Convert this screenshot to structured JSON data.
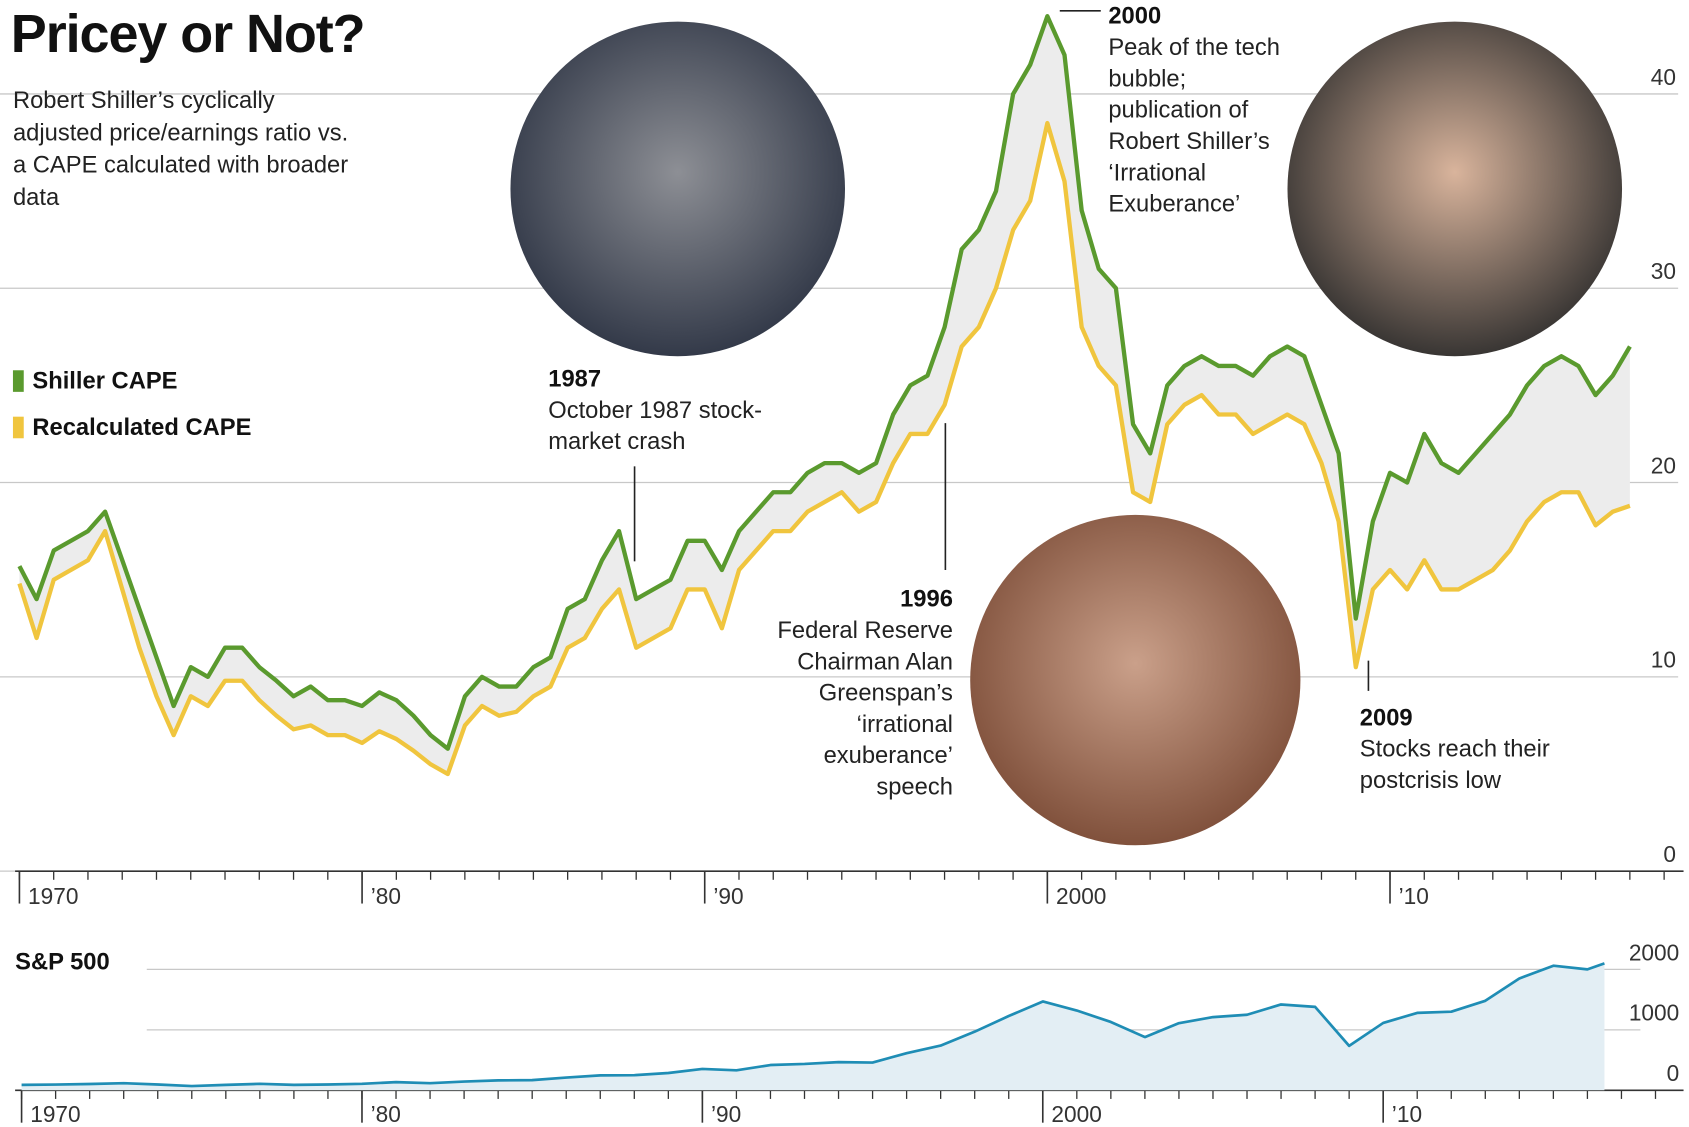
{
  "chart_data": [
    {
      "type": "line",
      "title": "Pricey or Not?",
      "subtitle": "Robert Shiller’s cyclically adjusted price/earnings ratio vs. a CAPE calculated with broader data",
      "x": [
        1970,
        1970.5,
        1971,
        1971.5,
        1972,
        1972.5,
        1973,
        1973.5,
        1974,
        1974.5,
        1975,
        1975.5,
        1976,
        1976.5,
        1977,
        1977.5,
        1978,
        1978.5,
        1979,
        1979.5,
        1980,
        1980.5,
        1981,
        1981.5,
        1982,
        1982.5,
        1983,
        1983.5,
        1984,
        1984.5,
        1985,
        1985.5,
        1986,
        1986.5,
        1987,
        1987.5,
        1988,
        1988.5,
        1989,
        1989.5,
        1990,
        1990.5,
        1991,
        1991.5,
        1992,
        1992.5,
        1993,
        1993.5,
        1994,
        1994.5,
        1995,
        1995.5,
        1996,
        1996.5,
        1997,
        1997.5,
        1998,
        1998.5,
        1999,
        1999.5,
        2000,
        2000.5,
        2001,
        2001.5,
        2002,
        2002.5,
        2003,
        2003.5,
        2004,
        2004.5,
        2005,
        2005.5,
        2006,
        2006.5,
        2007,
        2007.5,
        2008,
        2008.5,
        2009,
        2009.5,
        2010,
        2010.5,
        2011,
        2011.5,
        2012,
        2012.5,
        2013,
        2013.5,
        2014,
        2014.5,
        2015,
        2015.5,
        2016,
        2016.5,
        2017
      ],
      "series": [
        {
          "name": "Shiller CAPE",
          "color": "#5a9a2e",
          "values": [
            15.7,
            14.0,
            16.5,
            17.0,
            17.5,
            18.5,
            16.0,
            13.5,
            11.0,
            8.5,
            10.5,
            10.0,
            11.5,
            11.5,
            10.5,
            9.8,
            9.0,
            9.5,
            8.8,
            8.8,
            8.5,
            9.2,
            8.8,
            8.0,
            7.0,
            6.3,
            9.0,
            10.0,
            9.5,
            9.5,
            10.5,
            11.0,
            13.5,
            14.0,
            16.0,
            17.5,
            14.0,
            14.5,
            15.0,
            17.0,
            17.0,
            15.5,
            17.5,
            18.5,
            19.5,
            19.5,
            20.5,
            21.0,
            21.0,
            20.5,
            21.0,
            23.5,
            25.0,
            25.5,
            28.0,
            32.0,
            33.0,
            35.0,
            40.0,
            41.5,
            44.0,
            42.0,
            34.0,
            31.0,
            30.0,
            23.0,
            21.5,
            25.0,
            26.0,
            26.5,
            26.0,
            26.0,
            25.5,
            26.5,
            27.0,
            26.5,
            24.0,
            21.5,
            13.0,
            18.0,
            20.5,
            20.0,
            22.5,
            21.0,
            20.5,
            21.5,
            22.5,
            23.5,
            25.0,
            26.0,
            26.5,
            26.0,
            24.5,
            25.5,
            27.0
          ]
        },
        {
          "name": "Recalculated CAPE",
          "color": "#f0c53e",
          "values": [
            14.8,
            12.0,
            15.0,
            15.5,
            16.0,
            17.5,
            14.5,
            11.5,
            9.0,
            7.0,
            9.0,
            8.5,
            9.8,
            9.8,
            8.8,
            8.0,
            7.3,
            7.5,
            7.0,
            7.0,
            6.6,
            7.2,
            6.8,
            6.2,
            5.5,
            5.0,
            7.5,
            8.5,
            8.0,
            8.2,
            9.0,
            9.5,
            11.5,
            12.0,
            13.5,
            14.5,
            11.5,
            12.0,
            12.5,
            14.5,
            14.5,
            12.5,
            15.5,
            16.5,
            17.5,
            17.5,
            18.5,
            19.0,
            19.5,
            18.5,
            19.0,
            21.0,
            22.5,
            22.5,
            24.0,
            27.0,
            28.0,
            30.0,
            33.0,
            34.5,
            38.5,
            35.5,
            28.0,
            26.0,
            25.0,
            19.5,
            19.0,
            23.0,
            24.0,
            24.5,
            23.5,
            23.5,
            22.5,
            23.0,
            23.5,
            23.0,
            21.0,
            18.0,
            10.5,
            14.5,
            15.5,
            14.5,
            16.0,
            14.5,
            14.5,
            15.0,
            15.5,
            16.5,
            18.0,
            19.0,
            19.5,
            19.5,
            17.8,
            18.5,
            18.8
          ]
        }
      ],
      "xlim": [
        1970,
        2018
      ],
      "xticks": [
        1970,
        {
          "value": 1980,
          "label": "’80"
        },
        {
          "value": 1990,
          "label": "’90"
        },
        2000,
        {
          "value": 2010,
          "label": "’10"
        }
      ],
      "ylim": [
        0,
        45
      ],
      "yticks": [
        0,
        10,
        20,
        30,
        40
      ],
      "grid": true,
      "legend": "left",
      "annotations": [
        {
          "label": "1987",
          "text": "October 1987 stock-market crash"
        },
        {
          "label": "1996",
          "text": "Federal Reserve Chairman Alan Greenspan’s ‘irrational exuberance’ speech"
        },
        {
          "label": "2000",
          "text": "Peak of the tech bubble; publication of Robert Shiller’s ‘Irrational Exuberance’"
        },
        {
          "label": "2009",
          "text": "Stocks reach their postcrisis low"
        }
      ]
    },
    {
      "type": "area",
      "title": "S&P 500",
      "x": [
        1970,
        1971,
        1972,
        1973,
        1974,
        1975,
        1976,
        1977,
        1978,
        1979,
        1980,
        1981,
        1982,
        1983,
        1984,
        1985,
        1986,
        1987,
        1988,
        1989,
        1990,
        1991,
        1992,
        1993,
        1994,
        1995,
        1996,
        1997,
        1998,
        1999,
        2000,
        2001,
        2002,
        2003,
        2004,
        2005,
        2006,
        2007,
        2008,
        2009,
        2010,
        2011,
        2012,
        2013,
        2014,
        2015,
        2016,
        2016.5
      ],
      "values": [
        90,
        95,
        103,
        118,
        97,
        70,
        90,
        107,
        90,
        96,
        107,
        136,
        117,
        145,
        164,
        167,
        210,
        246,
        250,
        285,
        353,
        330,
        417,
        435,
        466,
        459,
        615,
        740,
        970,
        1229,
        1469,
        1320,
        1130,
        880,
        1110,
        1210,
        1250,
        1420,
        1380,
        735,
        1115,
        1280,
        1300,
        1480,
        1850,
        2060,
        2000,
        2100
      ],
      "color": "#1f8db5",
      "xlim": [
        1970,
        2018
      ],
      "xticks": [
        1970,
        {
          "value": 1980,
          "label": "’80"
        },
        {
          "value": 1990,
          "label": "’90"
        },
        2000,
        {
          "value": 2010,
          "label": "’10"
        }
      ],
      "ylim": [
        0,
        2400
      ],
      "yticks": [
        0,
        1000,
        2000
      ],
      "grid": true
    }
  ]
}
